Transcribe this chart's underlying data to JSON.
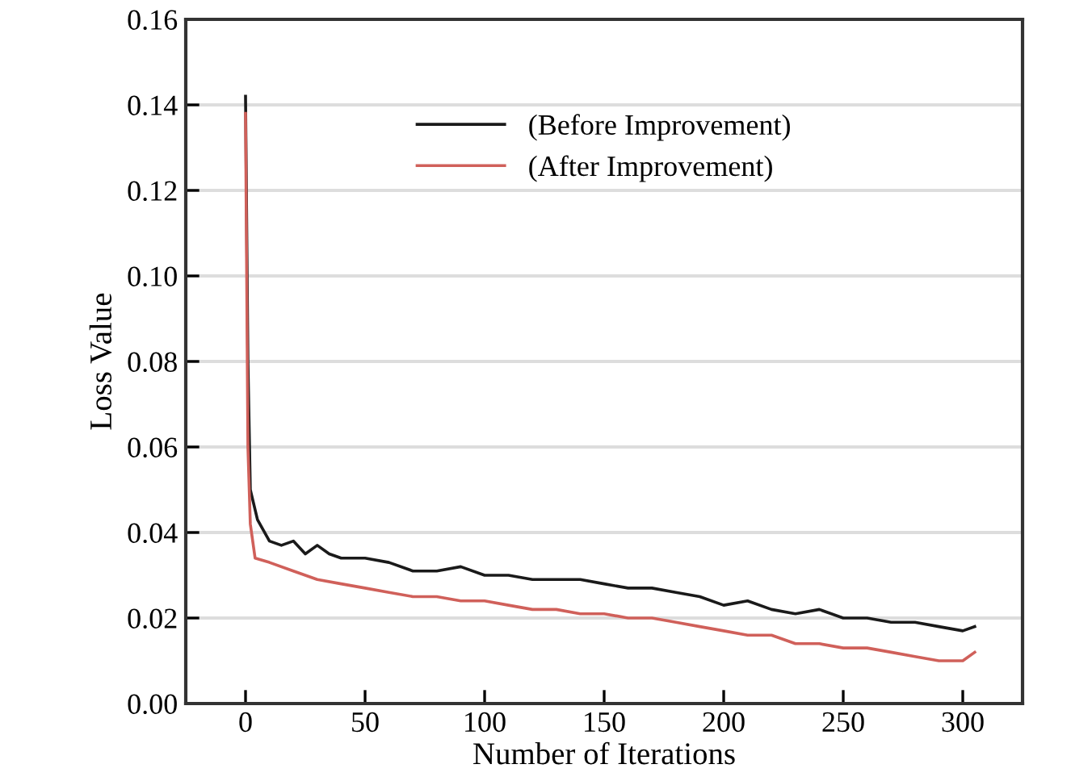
{
  "chart_data": {
    "type": "line",
    "xlabel": "Number of Iterations",
    "ylabel": "Loss Value",
    "xlim": [
      -25,
      325
    ],
    "xticks": [
      0,
      50,
      100,
      150,
      200,
      250,
      300
    ],
    "ylim": [
      0,
      0.16
    ],
    "yticks": [
      {
        "value": 0,
        "label": "0.00"
      },
      0.02,
      0.04,
      0.06,
      0.08,
      {
        "value": 0.1,
        "label": "0.10"
      },
      0.12,
      0.14,
      0.16
    ],
    "grid": "y",
    "legend": "top",
    "series": [
      {
        "name": "(Before Improvement)",
        "color": "#1a1a1a",
        "x": [
          0,
          1,
          2,
          5,
          10,
          15,
          20,
          25,
          30,
          35,
          40,
          50,
          60,
          70,
          80,
          90,
          100,
          110,
          120,
          130,
          140,
          150,
          160,
          170,
          180,
          190,
          200,
          210,
          220,
          230,
          240,
          250,
          260,
          270,
          280,
          290,
          300,
          305
        ],
        "values": [
          0.142,
          0.08,
          0.05,
          0.043,
          0.038,
          0.037,
          0.038,
          0.035,
          0.037,
          0.035,
          0.034,
          0.034,
          0.033,
          0.031,
          0.031,
          0.032,
          0.03,
          0.03,
          0.029,
          0.029,
          0.029,
          0.028,
          0.027,
          0.027,
          0.026,
          0.025,
          0.023,
          0.024,
          0.022,
          0.021,
          0.022,
          0.02,
          0.02,
          0.019,
          0.019,
          0.018,
          0.017,
          0.018
        ]
      },
      {
        "name": "(After Improvement)",
        "color": "#d0605a",
        "x": [
          0,
          1,
          2,
          4,
          10,
          20,
          30,
          40,
          50,
          60,
          70,
          80,
          90,
          100,
          110,
          120,
          130,
          140,
          150,
          160,
          170,
          180,
          190,
          200,
          210,
          220,
          230,
          240,
          250,
          260,
          270,
          280,
          290,
          300,
          305
        ],
        "values": [
          0.138,
          0.06,
          0.042,
          0.034,
          0.033,
          0.031,
          0.029,
          0.028,
          0.027,
          0.026,
          0.025,
          0.025,
          0.024,
          0.024,
          0.023,
          0.022,
          0.022,
          0.021,
          0.021,
          0.02,
          0.02,
          0.019,
          0.018,
          0.017,
          0.016,
          0.016,
          0.014,
          0.014,
          0.013,
          0.013,
          0.012,
          0.011,
          0.01,
          0.01,
          0.012
        ]
      }
    ]
  }
}
